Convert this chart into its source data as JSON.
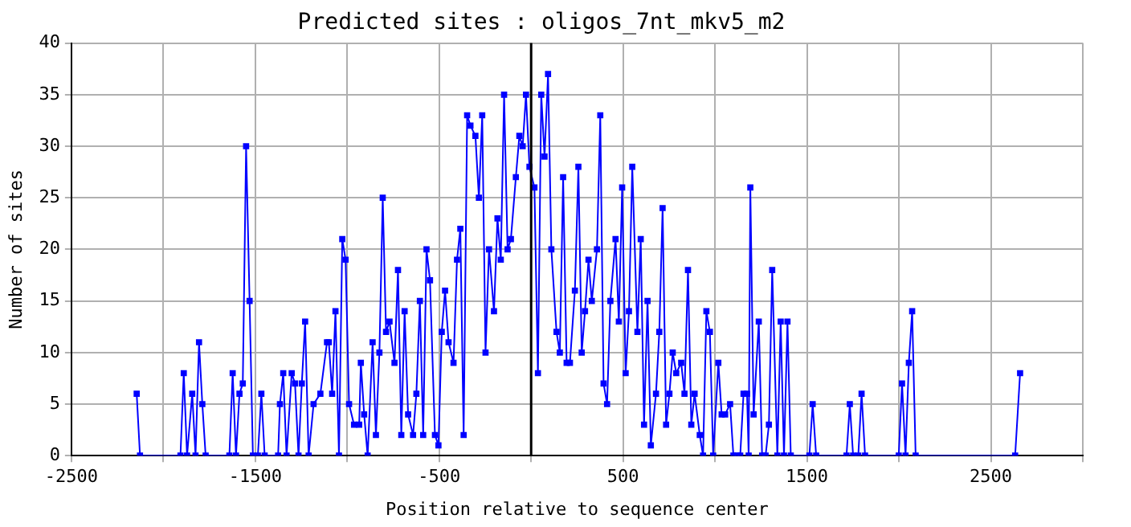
{
  "chart_data": {
    "type": "line",
    "title": "Predicted sites : oligos_7nt_mkv5_m2",
    "xlabel": "Position relative to sequence center",
    "ylabel": "Number of sites",
    "x": [
      -2145,
      -2127,
      -1907,
      -1889,
      -1871,
      -1843,
      -1825,
      -1806,
      -1788,
      -1770,
      -1641,
      -1623,
      -1605,
      -1586,
      -1568,
      -1550,
      -1531,
      -1513,
      -1486,
      -1467,
      -1449,
      -1376,
      -1366,
      -1348,
      -1330,
      -1302,
      -1284,
      -1265,
      -1247,
      -1229,
      -1210,
      -1183,
      -1146,
      -1110,
      -1100,
      -1082,
      -1064,
      -1045,
      -1027,
      -1009,
      -990,
      -963,
      -935,
      -926,
      -908,
      -889,
      -862,
      -844,
      -825,
      -807,
      -789,
      -770,
      -743,
      -724,
      -706,
      -688,
      -669,
      -642,
      -624,
      -605,
      -587,
      -569,
      -550,
      -523,
      -504,
      -486,
      -468,
      -449,
      -422,
      -403,
      -385,
      -367,
      -348,
      -330,
      -303,
      -284,
      -266,
      -248,
      -229,
      -202,
      -183,
      -165,
      -147,
      -128,
      -110,
      -83,
      -64,
      -46,
      -28,
      -9,
      18,
      37,
      55,
      73,
      92,
      110,
      138,
      156,
      174,
      193,
      211,
      238,
      257,
      275,
      293,
      312,
      330,
      358,
      376,
      394,
      413,
      431,
      459,
      477,
      495,
      514,
      532,
      550,
      578,
      596,
      614,
      633,
      651,
      679,
      697,
      715,
      734,
      752,
      770,
      789,
      816,
      834,
      853,
      871,
      889,
      917,
      935,
      953,
      972,
      990,
      1018,
      1036,
      1055,
      1082,
      1100,
      1119,
      1137,
      1155,
      1174,
      1183,
      1192,
      1210,
      1238,
      1256,
      1275,
      1293,
      1311,
      1339,
      1357,
      1375,
      1394,
      1412,
      1513,
      1531,
      1550,
      1715,
      1733,
      1751,
      1779,
      1797,
      1816,
      1999,
      2017,
      2036,
      2054,
      2072,
      2091,
      2632,
      2659
    ],
    "values": [
      6,
      0,
      0,
      8,
      0,
      6,
      0,
      11,
      5,
      0,
      0,
      8,
      0,
      6,
      7,
      30,
      15,
      0,
      0,
      6,
      0,
      0,
      5,
      8,
      0,
      8,
      7,
      0,
      7,
      13,
      0,
      5,
      6,
      11,
      11,
      6,
      14,
      0,
      21,
      19,
      5,
      3,
      3,
      9,
      4,
      0,
      11,
      2,
      10,
      25,
      12,
      13,
      9,
      18,
      2,
      14,
      4,
      2,
      6,
      15,
      2,
      20,
      17,
      2,
      1,
      12,
      16,
      11,
      9,
      19,
      22,
      2,
      33,
      32,
      31,
      25,
      33,
      10,
      20,
      14,
      23,
      19,
      35,
      20,
      21,
      27,
      31,
      30,
      35,
      28,
      26,
      8,
      35,
      29,
      37,
      20,
      12,
      10,
      27,
      9,
      9,
      16,
      28,
      10,
      14,
      19,
      15,
      20,
      33,
      7,
      5,
      15,
      21,
      13,
      26,
      8,
      14,
      28,
      12,
      21,
      3,
      15,
      1,
      6,
      12,
      24,
      3,
      6,
      10,
      8,
      9,
      6,
      18,
      3,
      6,
      2,
      0,
      14,
      12,
      0,
      9,
      4,
      4,
      5,
      0,
      0,
      0,
      6,
      6,
      0,
      26,
      4,
      13,
      0,
      0,
      3,
      18,
      0,
      13,
      0,
      13,
      0,
      0,
      5,
      0,
      0,
      5,
      0,
      0,
      6,
      0,
      0,
      7,
      0,
      9,
      14,
      0,
      0,
      8
    ],
    "color": "#0000ff",
    "marker": "square",
    "line_style": "solid",
    "xlim": [
      -2500,
      3000
    ],
    "xticks": [
      -2500,
      {
        "value": -2000,
        "label": null
      },
      -1500,
      {
        "value": -1000,
        "label": null
      },
      -500,
      {
        "value": 0,
        "label": null
      },
      500,
      {
        "value": 1000,
        "label": null
      },
      1500,
      {
        "value": 2000,
        "label": null
      },
      2500,
      {
        "value": 3000,
        "label": null
      }
    ],
    "ylim": [
      0,
      40
    ],
    "yticks": [
      0,
      5,
      10,
      15,
      20,
      25,
      30,
      35,
      40
    ],
    "ref_lines": [
      {
        "axis": "x",
        "value": 0,
        "color": "#000000"
      }
    ],
    "grid": true,
    "legend": false
  }
}
